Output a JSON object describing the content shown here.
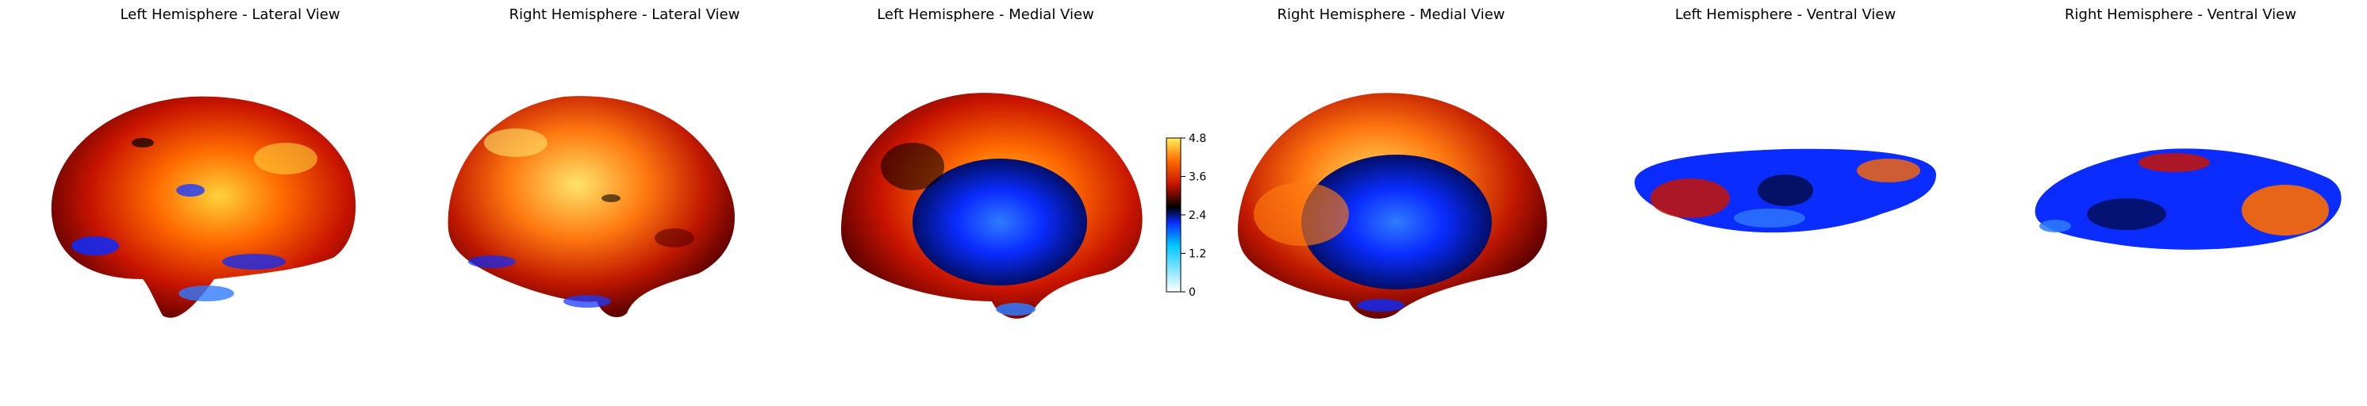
{
  "panels": [
    {
      "title": "Left Hemisphere - Lateral View"
    },
    {
      "title": "Right Hemisphere - Lateral View"
    },
    {
      "title": "Left Hemisphere - Medial View"
    },
    {
      "title": "Right Hemisphere - Medial View"
    },
    {
      "title": "Left Hemisphere - Ventral View"
    },
    {
      "title": "Right Hemisphere - Ventral View"
    }
  ],
  "colorbar": {
    "ticks": [
      "4.8",
      "3.6",
      "2.4",
      "1.2",
      "0"
    ],
    "range": [
      0,
      4.8
    ],
    "colormap": "jet_r hot composite",
    "colors": {
      "low": "#ffffff",
      "blue": "#0a2cff",
      "dark": "#000000",
      "red": "#c81400",
      "orange": "#ff6a00",
      "high": "#fff15a"
    }
  }
}
